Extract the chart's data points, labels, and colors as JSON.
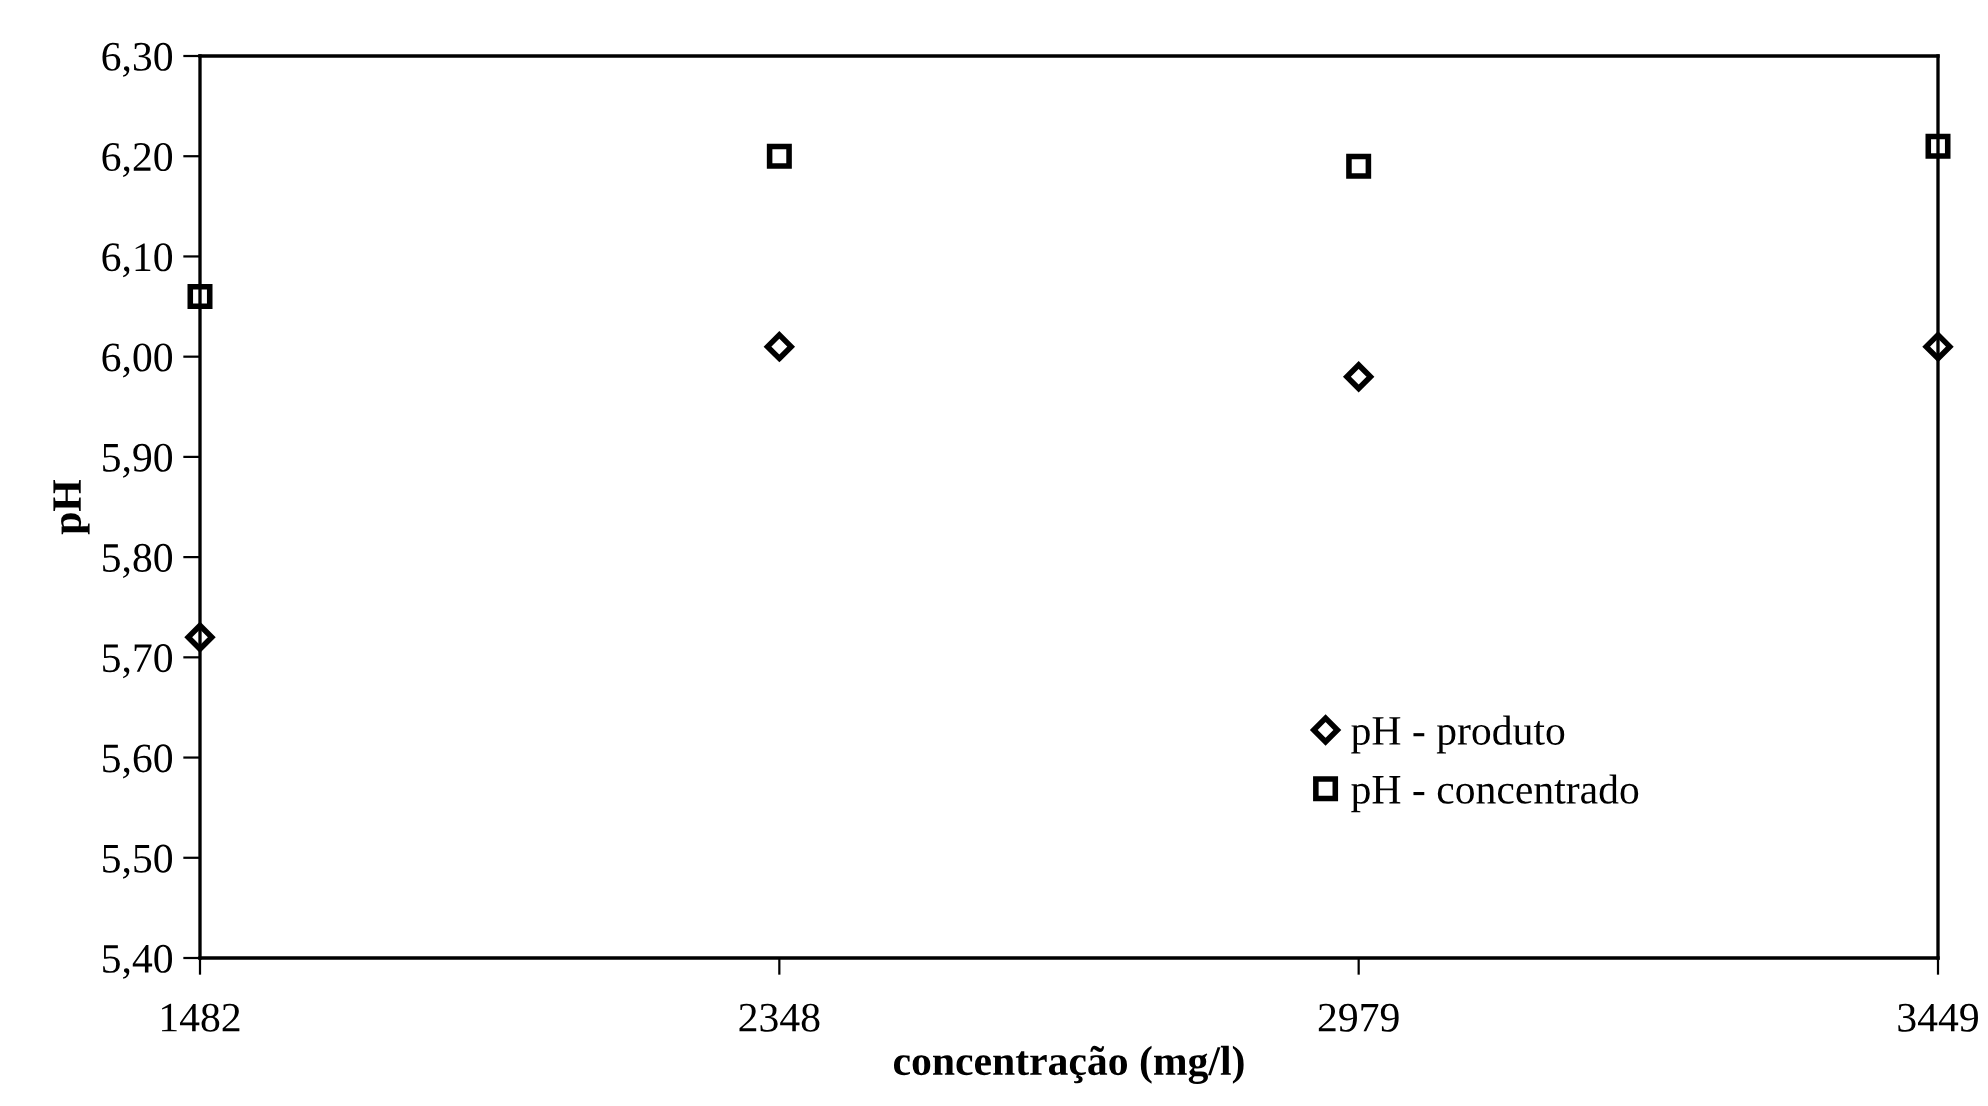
{
  "chart_data": {
    "type": "scatter",
    "xlabel": "concentração (mg/l)",
    "ylabel": "pH",
    "categories": [
      "1482",
      "2348",
      "2979",
      "3449"
    ],
    "series": [
      {
        "name": "pH - produto",
        "color": "#000000",
        "marker": "diamond",
        "values": [
          5.72,
          6.01,
          5.98,
          6.01
        ]
      },
      {
        "name": "pH - concentrado",
        "color": "#000000",
        "marker": "square",
        "values": [
          6.06,
          6.2,
          6.19,
          6.21
        ]
      }
    ],
    "ylim": [
      5.4,
      6.3
    ],
    "yticks": [
      {
        "value": 5.4,
        "label": "5,40"
      },
      {
        "value": 5.5,
        "label": "5,50"
      },
      {
        "value": 5.6,
        "label": "5,60"
      },
      {
        "value": 5.7,
        "label": "5,70"
      },
      {
        "value": 5.8,
        "label": "5,80"
      },
      {
        "value": 5.9,
        "label": "5,90"
      },
      {
        "value": 6.0,
        "label": "6,00"
      },
      {
        "value": 6.1,
        "label": "6,10"
      },
      {
        "value": 6.2,
        "label": "6,20"
      },
      {
        "value": 6.3,
        "label": "6,30"
      }
    ],
    "grid": false,
    "legend": "bottom right"
  }
}
